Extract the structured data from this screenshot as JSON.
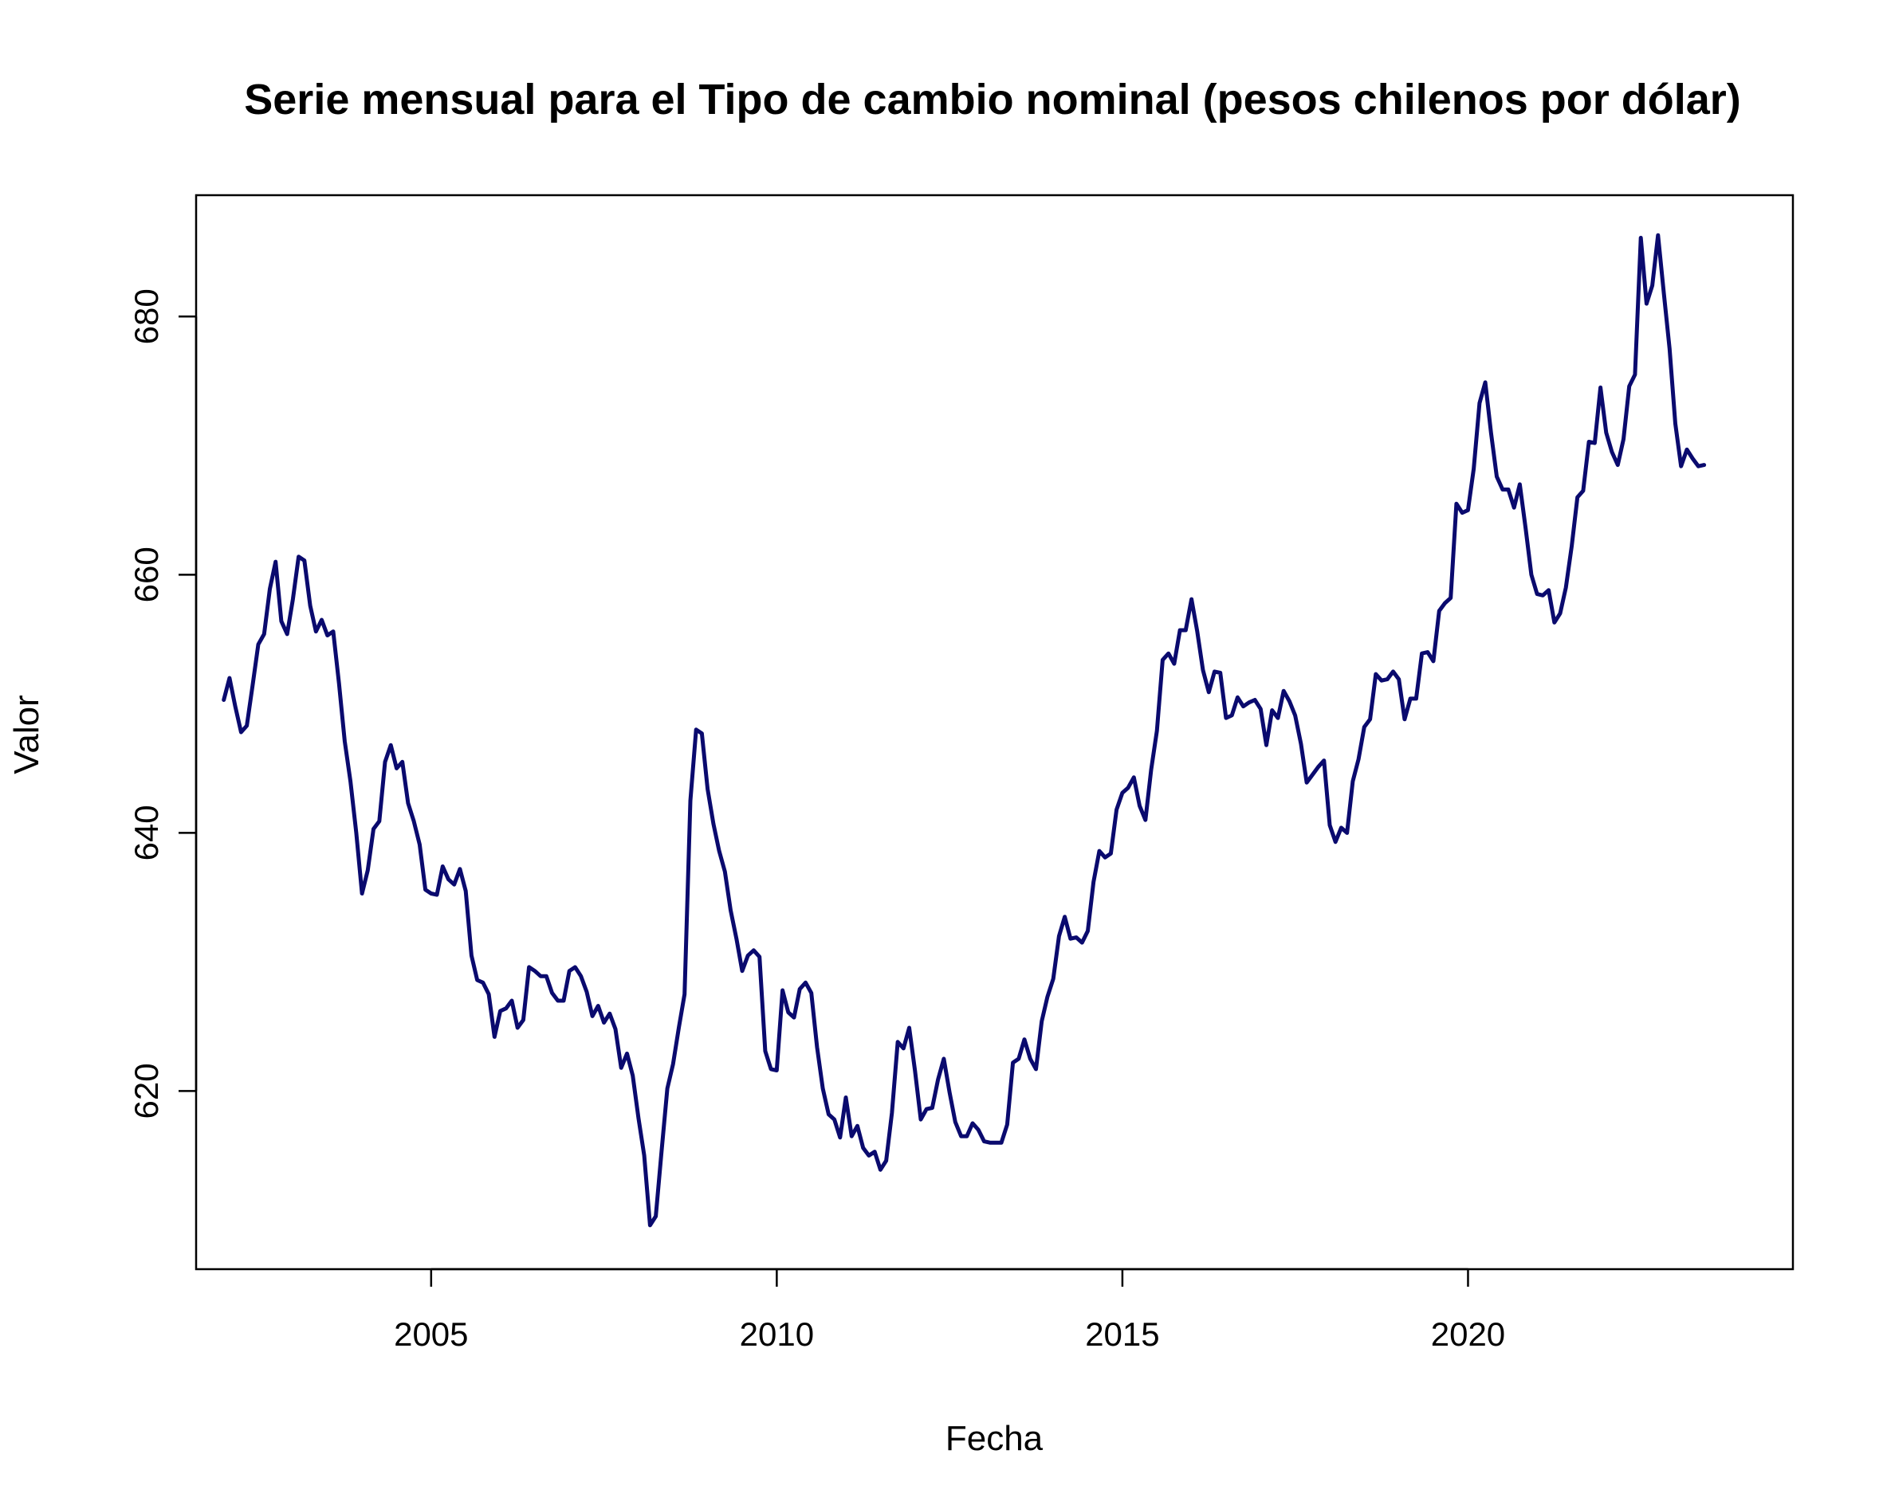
{
  "chart_data": {
    "type": "line",
    "title": "Serie mensual para el Tipo de cambio nominal (pesos chilenos por dólar)",
    "xlabel": "Fecha",
    "ylabel": "Valor",
    "xlim": [
      2001.6,
      2024.7
    ],
    "ylim": [
      606.2,
      689.4
    ],
    "x_ticks": [
      2005,
      2010,
      2015,
      2020
    ],
    "x_tick_labels": [
      "2005",
      "2010",
      "2015",
      "2020"
    ],
    "y_ticks": [
      620,
      640,
      660,
      680
    ],
    "y_tick_labels": [
      "620",
      "640",
      "660",
      "680"
    ],
    "grid": false,
    "line_color": "#0a0a6e",
    "series": [
      {
        "x_start": 2002.0,
        "x_step": 0.08333,
        "values": [
          650.3,
          652.0,
          649.8,
          647.8,
          648.3,
          651.4,
          654.6,
          655.4,
          658.9,
          661.0,
          656.4,
          655.4,
          658.1,
          661.4,
          661.1,
          657.6,
          655.6,
          656.5,
          655.3,
          655.6,
          651.6,
          647.1,
          644.0,
          640.0,
          635.3,
          637.1,
          640.3,
          640.9,
          645.5,
          646.8,
          645.0,
          645.5,
          642.3,
          640.9,
          639.1,
          635.6,
          635.3,
          635.2,
          637.4,
          636.4,
          636.0,
          637.2,
          635.5,
          630.5,
          628.6,
          628.4,
          627.5,
          624.2,
          626.2,
          626.4,
          627.0,
          624.9,
          625.5,
          629.6,
          629.3,
          628.9,
          628.9,
          627.6,
          627.0,
          627.0,
          629.3,
          629.6,
          628.9,
          627.7,
          625.8,
          626.6,
          625.3,
          626.0,
          624.8,
          621.8,
          622.9,
          621.2,
          617.9,
          615.0,
          609.6,
          610.3,
          615.3,
          620.2,
          622.1,
          624.9,
          627.5,
          642.5,
          648.0,
          647.7,
          643.4,
          640.7,
          638.6,
          637.0,
          634.0,
          631.8,
          629.3,
          630.5,
          630.9,
          630.4,
          623.1,
          621.7,
          621.6,
          627.8,
          626.1,
          625.7,
          627.9,
          628.4,
          627.6,
          623.4,
          620.2,
          618.2,
          617.8,
          616.4,
          619.5,
          616.5,
          617.3,
          615.6,
          615.0,
          615.3,
          613.9,
          614.6,
          618.3,
          623.8,
          623.3,
          624.9,
          621.6,
          617.8,
          618.6,
          618.7,
          620.9,
          622.5,
          619.9,
          617.6,
          616.5,
          616.5,
          617.5,
          617.0,
          616.1,
          616.0,
          616.0,
          616.0,
          617.4,
          622.2,
          622.5,
          624.0,
          622.5,
          621.7,
          625.4,
          627.3,
          628.7,
          632.0,
          633.5,
          631.8,
          631.9,
          631.5,
          632.4,
          636.2,
          638.6,
          638.1,
          638.4,
          641.8,
          643.1,
          643.5,
          644.3,
          642.1,
          641.0,
          644.9,
          647.9,
          653.4,
          653.9,
          653.1,
          655.7,
          655.7,
          658.1,
          655.6,
          652.6,
          650.9,
          652.5,
          652.4,
          648.9,
          649.1,
          650.5,
          649.8,
          650.1,
          650.3,
          649.6,
          646.8,
          649.5,
          648.9,
          651.0,
          650.2,
          649.1,
          646.9,
          643.9,
          644.5,
          645.1,
          645.6,
          640.6,
          639.3,
          640.4,
          640.0,
          644.0,
          645.7,
          648.2,
          648.8,
          652.3,
          651.8,
          651.9,
          652.5,
          651.9,
          648.8,
          650.4,
          650.4,
          653.9,
          654.0,
          653.3,
          657.2,
          657.8,
          658.2,
          665.5,
          664.8,
          665.0,
          668.2,
          673.3,
          674.9,
          671.0,
          667.6,
          666.6,
          666.6,
          665.2,
          667.0,
          663.6,
          660.0,
          658.5,
          658.4,
          658.8,
          656.3,
          657.0,
          659.0,
          662.2,
          666.0,
          666.5,
          670.3,
          670.2,
          674.5,
          671.0,
          669.5,
          668.5,
          670.5,
          674.6,
          675.5,
          686.1,
          681.0,
          682.4,
          686.3,
          681.8,
          677.5,
          671.7,
          668.4,
          669.7,
          669.0,
          668.4,
          668.5
        ]
      }
    ]
  }
}
